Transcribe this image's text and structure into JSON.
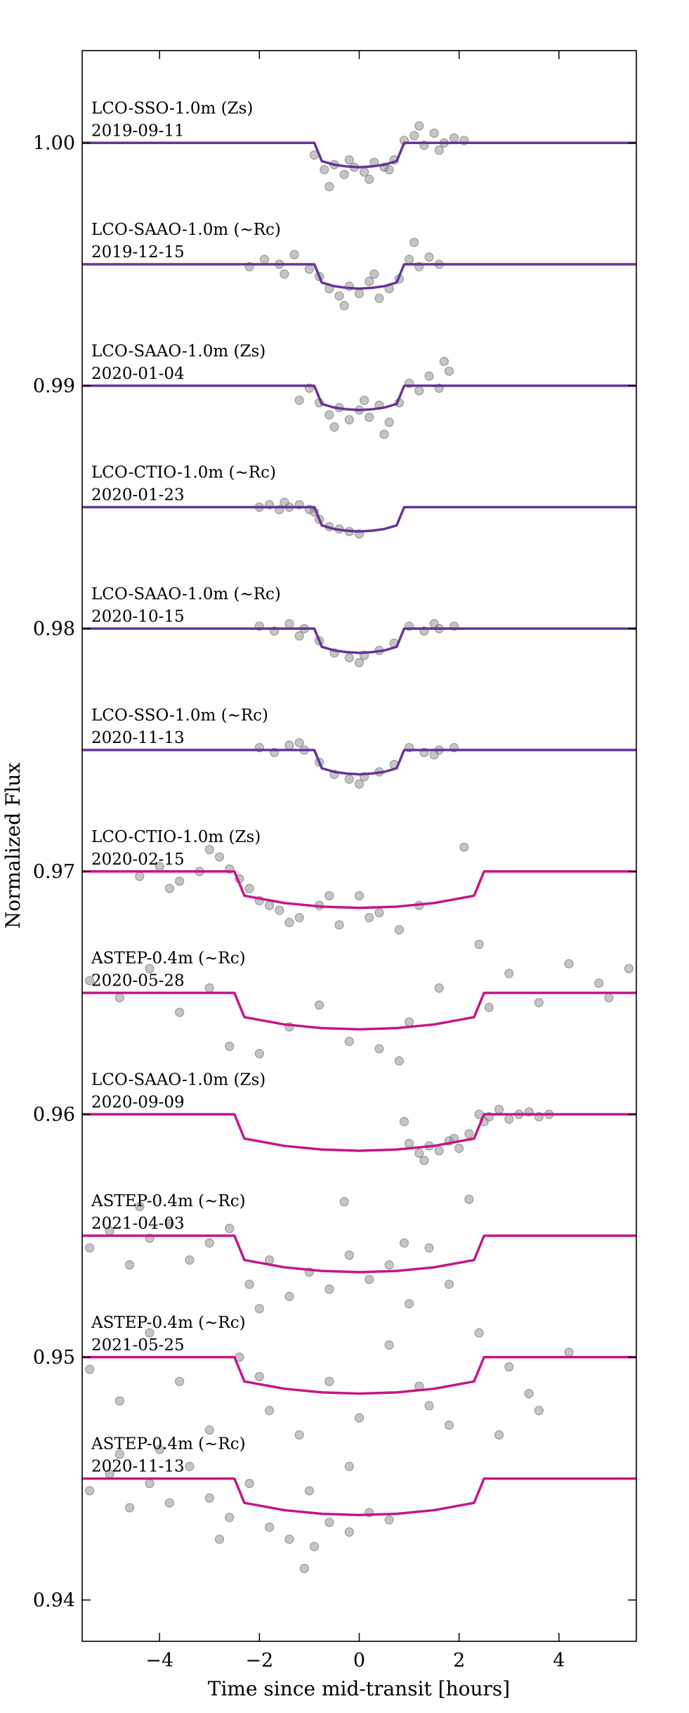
{
  "chart_data": {
    "type": "scatter",
    "xlabel": "Time since mid-transit [hours]",
    "ylabel": "Normalized Flux",
    "xlim": [
      -5.55,
      5.55
    ],
    "ylim": [
      0.9383,
      1.0038
    ],
    "xticks": [
      {
        "value": -4,
        "label": "−4"
      },
      {
        "value": -2,
        "label": "−2"
      },
      0,
      2,
      4
    ],
    "yticks": [
      0.94,
      0.95,
      0.96,
      0.97,
      0.98,
      0.99,
      {
        "value": 1,
        "label": "1.00"
      }
    ],
    "point_color": "#8c8c8c",
    "series": [
      {
        "name": "LCO-SSO-1.0m (Zs)",
        "date": "2019-09-11",
        "color": "#663399",
        "model": {
          "x": [
            -5.55,
            -0.9,
            -0.75,
            -0.5,
            -0.25,
            0,
            0.25,
            0.5,
            0.75,
            0.9,
            5.55
          ],
          "y": [
            1.0,
            1.0,
            0.99925,
            0.9991,
            0.99903,
            0.999,
            0.99903,
            0.9991,
            0.99925,
            1.0,
            1.0
          ]
        },
        "points": {
          "x": [
            -0.9,
            -0.7,
            -0.5,
            -0.3,
            -0.1,
            0.1,
            0.3,
            0.5,
            0.7,
            0.9,
            1.1,
            1.3,
            1.5,
            1.7,
            1.9,
            2.1,
            -0.6,
            -0.2,
            0.2,
            0.6,
            1.2,
            1.6
          ],
          "y": [
            0.9995,
            0.9989,
            0.9991,
            0.9987,
            0.999,
            0.9988,
            0.9992,
            0.999,
            0.9993,
            1.0001,
            1.0003,
            0.9999,
            1.0004,
            1.0,
            1.0002,
            1.0001,
            0.9982,
            0.9993,
            0.9985,
            0.9989,
            1.0007,
            0.9997
          ]
        }
      },
      {
        "name": "LCO-SAAO-1.0m (∼Rc)",
        "date": "2019-12-15",
        "color": "#663399",
        "model": {
          "x": [
            -5.55,
            -0.9,
            -0.75,
            -0.5,
            -0.25,
            0,
            0.25,
            0.5,
            0.75,
            0.9,
            5.55
          ],
          "y": [
            0.995,
            0.995,
            0.99425,
            0.9941,
            0.99403,
            0.994,
            0.99403,
            0.9941,
            0.99425,
            0.995,
            0.995
          ]
        },
        "points": {
          "x": [
            -2.2,
            -1.9,
            -1.6,
            -1.3,
            -1.0,
            -0.8,
            -0.6,
            -0.4,
            -0.2,
            0,
            0.2,
            0.4,
            0.6,
            0.8,
            1.0,
            1.2,
            1.4,
            1.6,
            -1.5,
            -0.3,
            0.3,
            1.1
          ],
          "y": [
            0.9949,
            0.9952,
            0.995,
            0.9954,
            0.9948,
            0.9945,
            0.994,
            0.9937,
            0.9941,
            0.9938,
            0.9943,
            0.9936,
            0.994,
            0.9944,
            0.9952,
            0.9949,
            0.9953,
            0.995,
            0.9946,
            0.9933,
            0.9946,
            0.9959
          ]
        }
      },
      {
        "name": "LCO-SAAO-1.0m (Zs)",
        "date": "2020-01-04",
        "color": "#663399",
        "model": {
          "x": [
            -5.55,
            -0.9,
            -0.75,
            -0.5,
            -0.25,
            0,
            0.25,
            0.5,
            0.75,
            0.9,
            5.55
          ],
          "y": [
            0.99,
            0.99,
            0.98925,
            0.9891,
            0.98903,
            0.989,
            0.98903,
            0.9891,
            0.98925,
            0.99,
            0.99
          ]
        },
        "points": {
          "x": [
            -1.2,
            -1.0,
            -0.8,
            -0.6,
            -0.4,
            -0.2,
            0,
            0.2,
            0.4,
            0.6,
            0.8,
            1.0,
            1.2,
            1.4,
            1.6,
            1.8,
            -0.5,
            0.1,
            0.5,
            1.7
          ],
          "y": [
            0.9894,
            0.9899,
            0.9893,
            0.9888,
            0.9891,
            0.9886,
            0.989,
            0.9887,
            0.9892,
            0.9885,
            0.9893,
            0.9901,
            0.9898,
            0.9904,
            0.9899,
            0.9906,
            0.9883,
            0.9894,
            0.988,
            0.991
          ]
        }
      },
      {
        "name": "LCO-CTIO-1.0m (∼Rc)",
        "date": "2020-01-23",
        "color": "#663399",
        "model": {
          "x": [
            -5.55,
            -0.9,
            -0.75,
            -0.5,
            -0.25,
            0,
            0.25,
            0.5,
            0.75,
            0.9,
            5.55
          ],
          "y": [
            0.985,
            0.985,
            0.98425,
            0.9841,
            0.98403,
            0.984,
            0.98403,
            0.9841,
            0.98425,
            0.985,
            0.985
          ]
        },
        "points": {
          "x": [
            -2.0,
            -1.8,
            -1.6,
            -1.4,
            -1.2,
            -1.0,
            -0.8,
            -0.6,
            -0.4,
            -0.2,
            0,
            -1.5,
            -0.9
          ],
          "y": [
            0.985,
            0.9851,
            0.9849,
            0.985,
            0.9851,
            0.9849,
            0.9845,
            0.9842,
            0.9841,
            0.984,
            0.9839,
            0.9852,
            0.9848
          ]
        }
      },
      {
        "name": "LCO-SAAO-1.0m (∼Rc)",
        "date": "2020-10-15",
        "color": "#663399",
        "model": {
          "x": [
            -5.55,
            -0.9,
            -0.75,
            -0.5,
            -0.25,
            0,
            0.25,
            0.5,
            0.75,
            0.9,
            5.55
          ],
          "y": [
            0.98,
            0.98,
            0.97925,
            0.9791,
            0.97903,
            0.979,
            0.97903,
            0.9791,
            0.97925,
            0.98,
            0.98
          ]
        },
        "points": {
          "x": [
            -2.0,
            -1.7,
            -1.4,
            -1.1,
            -0.8,
            -0.5,
            -0.2,
            0.1,
            0.4,
            0.7,
            1.0,
            1.3,
            1.6,
            1.9,
            -1.2,
            0.0,
            1.5
          ],
          "y": [
            0.9801,
            0.9799,
            0.9802,
            0.98,
            0.9795,
            0.979,
            0.9788,
            0.9789,
            0.9791,
            0.9794,
            0.9801,
            0.9799,
            0.98,
            0.9801,
            0.9797,
            0.9786,
            0.9802
          ]
        }
      },
      {
        "name": "LCO-SSO-1.0m (∼Rc)",
        "date": "2020-11-13",
        "color": "#663399",
        "model": {
          "x": [
            -5.55,
            -0.9,
            -0.75,
            -0.5,
            -0.25,
            0,
            0.25,
            0.5,
            0.75,
            0.9,
            5.55
          ],
          "y": [
            0.975,
            0.975,
            0.97425,
            0.9741,
            0.97403,
            0.974,
            0.97403,
            0.9741,
            0.97425,
            0.975,
            0.975
          ]
        },
        "points": {
          "x": [
            -2.0,
            -1.7,
            -1.4,
            -1.1,
            -0.8,
            -0.5,
            -0.2,
            0.1,
            0.4,
            0.7,
            1.0,
            1.3,
            1.6,
            1.9,
            -1.2,
            0.0,
            1.5
          ],
          "y": [
            0.9751,
            0.9749,
            0.9752,
            0.975,
            0.9745,
            0.974,
            0.9738,
            0.9739,
            0.9741,
            0.9744,
            0.9751,
            0.9749,
            0.975,
            0.9751,
            0.9753,
            0.9736,
            0.9748
          ]
        }
      },
      {
        "name": "LCO-CTIO-1.0m (Zs)",
        "date": "2020-02-15",
        "color": "#c71585",
        "model": {
          "x": [
            -5.55,
            -2.5,
            -2.3,
            -1.5,
            -0.75,
            0,
            0.75,
            1.5,
            2.3,
            2.5,
            5.55
          ],
          "y": [
            0.97,
            0.97,
            0.969,
            0.9687,
            0.96855,
            0.9685,
            0.96855,
            0.9687,
            0.969,
            0.97,
            0.97
          ]
        },
        "points": {
          "x": [
            -4.4,
            -4.0,
            -3.6,
            -3.2,
            -2.8,
            -2.4,
            -2.0,
            -1.6,
            -1.2,
            -0.8,
            -0.4,
            0,
            0.4,
            0.8,
            1.2,
            -3.8,
            -3.0,
            -2.2,
            -1.4,
            -0.6,
            0.2,
            2.1,
            -2.6,
            -1.8
          ],
          "y": [
            0.9698,
            0.9702,
            0.9696,
            0.97,
            0.9706,
            0.9697,
            0.9688,
            0.9684,
            0.9681,
            0.9686,
            0.9678,
            0.969,
            0.9683,
            0.9676,
            0.9686,
            0.9693,
            0.9709,
            0.9693,
            0.9679,
            0.969,
            0.9681,
            0.971,
            0.9701,
            0.9686
          ]
        }
      },
      {
        "name": "ASTEP-0.4m (∼Rc)",
        "date": "2020-05-28",
        "color": "#c71585",
        "model": {
          "x": [
            -5.55,
            -2.5,
            -2.3,
            -1.5,
            -0.75,
            0,
            0.75,
            1.5,
            2.3,
            2.5,
            5.55
          ],
          "y": [
            0.965,
            0.965,
            0.964,
            0.9637,
            0.96355,
            0.9635,
            0.96355,
            0.9637,
            0.964,
            0.965,
            0.965
          ]
        },
        "points": {
          "x": [
            -5.4,
            -4.8,
            -4.2,
            -3.6,
            -3.0,
            -2.0,
            -1.4,
            -0.8,
            -0.2,
            0.4,
            1.0,
            1.6,
            2.4,
            3.0,
            3.6,
            4.2,
            4.8,
            5.4,
            -2.6,
            0.8,
            2.6,
            5.0
          ],
          "y": [
            0.9655,
            0.9648,
            0.966,
            0.9642,
            0.9652,
            0.9625,
            0.9636,
            0.9645,
            0.963,
            0.9627,
            0.9638,
            0.9652,
            0.967,
            0.9658,
            0.9646,
            0.9662,
            0.9654,
            0.966,
            0.9628,
            0.9622,
            0.9644,
            0.9648
          ]
        }
      },
      {
        "name": "LCO-SAAO-1.0m (Zs)",
        "date": "2020-09-09",
        "color": "#c71585",
        "model": {
          "x": [
            -5.55,
            -2.5,
            -2.3,
            -1.5,
            -0.75,
            0,
            0.75,
            1.5,
            2.3,
            2.5,
            5.55
          ],
          "y": [
            0.96,
            0.96,
            0.959,
            0.9587,
            0.95855,
            0.9585,
            0.95855,
            0.9587,
            0.959,
            0.96,
            0.96
          ]
        },
        "points": {
          "x": [
            1.0,
            1.2,
            1.4,
            1.6,
            1.8,
            2.0,
            2.2,
            2.4,
            2.6,
            2.8,
            3.0,
            3.2,
            3.4,
            3.6,
            3.8,
            1.3,
            1.9,
            2.5,
            0.9
          ],
          "y": [
            0.9588,
            0.9584,
            0.9587,
            0.9585,
            0.9589,
            0.9586,
            0.9592,
            0.96,
            0.9599,
            0.9602,
            0.9598,
            0.96,
            0.9601,
            0.9599,
            0.96,
            0.9581,
            0.959,
            0.9597,
            0.9597
          ]
        }
      },
      {
        "name": "ASTEP-0.4m (∼Rc)",
        "date": "2021-04-03",
        "color": "#c71585",
        "model": {
          "x": [
            -5.55,
            -2.5,
            -2.3,
            -1.5,
            -0.75,
            0,
            0.75,
            1.5,
            2.3,
            2.5,
            5.55
          ],
          "y": [
            0.955,
            0.955,
            0.954,
            0.9537,
            0.95355,
            0.9535,
            0.95355,
            0.9537,
            0.954,
            0.955,
            0.955
          ]
        },
        "points": {
          "x": [
            -5.4,
            -5.0,
            -4.6,
            -4.2,
            -3.8,
            -3.4,
            -3.0,
            -2.6,
            -2.2,
            -1.8,
            -1.4,
            -1.0,
            -0.6,
            -0.2,
            0.2,
            0.6,
            1.0,
            1.4,
            1.8,
            2.2,
            -4.4,
            -2.0,
            -0.3,
            0.9
          ],
          "y": [
            0.9545,
            0.9552,
            0.9538,
            0.9549,
            0.9555,
            0.954,
            0.9547,
            0.9553,
            0.953,
            0.954,
            0.9525,
            0.9535,
            0.9528,
            0.9542,
            0.9532,
            0.9538,
            0.9522,
            0.9545,
            0.953,
            0.9565,
            0.9562,
            0.952,
            0.9564,
            0.9547
          ]
        }
      },
      {
        "name": "ASTEP-0.4m (∼Rc)",
        "date": "2021-05-25",
        "color": "#c71585",
        "model": {
          "x": [
            -5.55,
            -2.5,
            -2.3,
            -1.5,
            -0.75,
            0,
            0.75,
            1.5,
            2.3,
            2.5,
            5.55
          ],
          "y": [
            0.95,
            0.95,
            0.949,
            0.9487,
            0.94855,
            0.9485,
            0.94855,
            0.9487,
            0.949,
            0.95,
            0.95
          ]
        },
        "points": {
          "x": [
            -5.4,
            -4.8,
            -4.2,
            -3.6,
            -3.0,
            -2.4,
            -1.8,
            -1.2,
            -0.6,
            0,
            0.6,
            1.2,
            1.8,
            2.4,
            3.0,
            3.6,
            4.2,
            -4.0,
            -2.0,
            -0.2,
            1.4,
            2.8,
            3.4
          ],
          "y": [
            0.9495,
            0.9482,
            0.951,
            0.949,
            0.947,
            0.95,
            0.9478,
            0.9468,
            0.949,
            0.9475,
            0.9505,
            0.9488,
            0.9472,
            0.951,
            0.9496,
            0.9478,
            0.9502,
            0.9462,
            0.9492,
            0.9455,
            0.948,
            0.9468,
            0.9485
          ]
        }
      },
      {
        "name": "ASTEP-0.4m (∼Rc)",
        "date": "2020-11-13",
        "color": "#c71585",
        "model": {
          "x": [
            -5.55,
            -2.5,
            -2.3,
            -1.5,
            -0.75,
            0,
            0.75,
            1.5,
            2.3,
            2.5,
            5.55
          ],
          "y": [
            0.945,
            0.945,
            0.944,
            0.9437,
            0.94355,
            0.9435,
            0.94355,
            0.9437,
            0.944,
            0.945,
            0.945
          ]
        },
        "points": {
          "x": [
            -5.4,
            -5.0,
            -4.6,
            -4.2,
            -3.8,
            -3.4,
            -3.0,
            -2.6,
            -2.2,
            -1.8,
            -1.4,
            -1.0,
            -0.6,
            -0.2,
            0.2,
            0.6,
            -4.8,
            -2.8,
            -1.1,
            -0.9
          ],
          "y": [
            0.9445,
            0.9452,
            0.9438,
            0.9448,
            0.944,
            0.9455,
            0.9442,
            0.9434,
            0.9448,
            0.943,
            0.9425,
            0.9445,
            0.9432,
            0.9428,
            0.9436,
            0.9433,
            0.946,
            0.9425,
            0.9413,
            0.9422
          ]
        }
      }
    ]
  }
}
